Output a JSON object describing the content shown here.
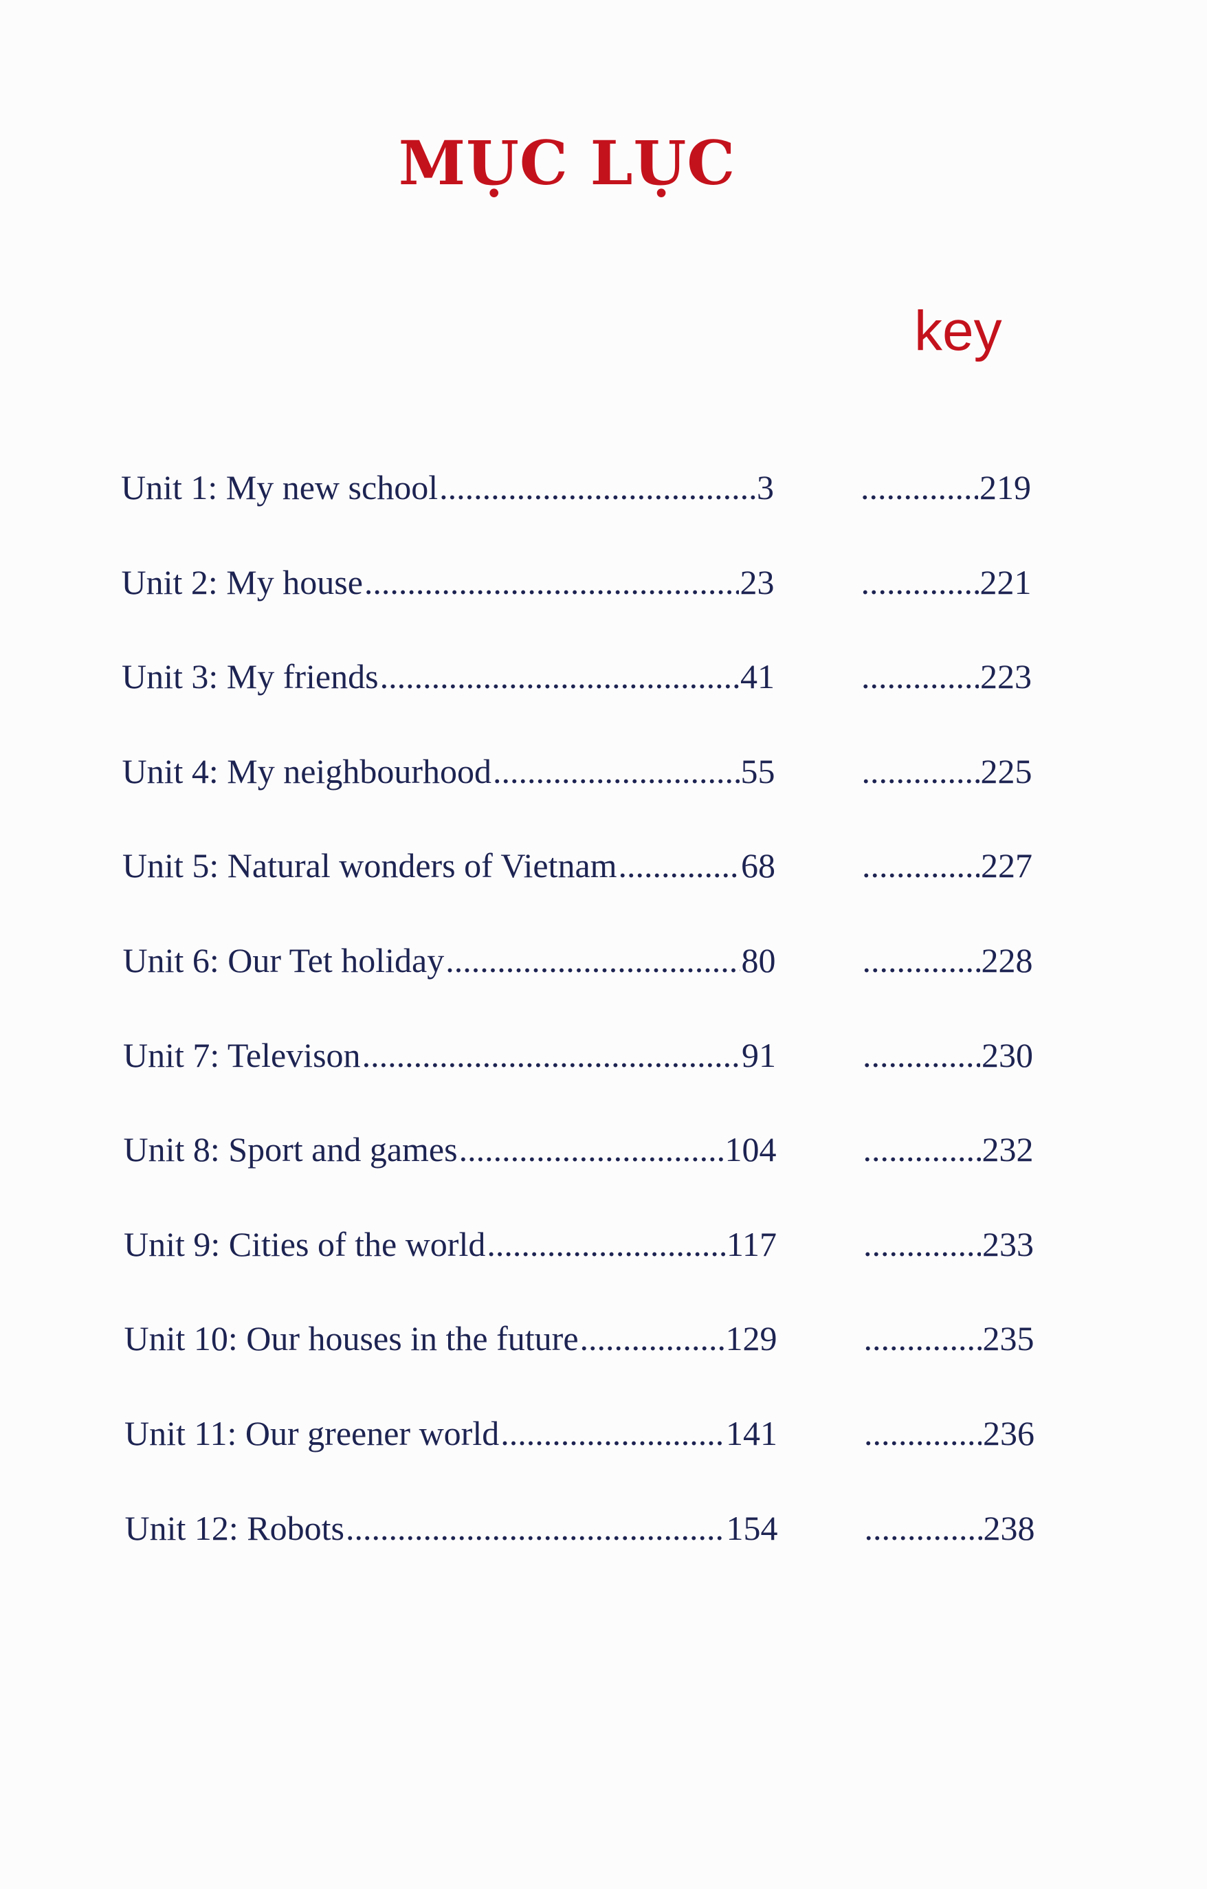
{
  "title": "MỤC LỤC",
  "key_label": "key",
  "colors": {
    "title": "#c4121c",
    "text": "#1d2452"
  },
  "entries": [
    {
      "label": "Unit 1: My new school",
      "page": "3",
      "key_page": "219"
    },
    {
      "label": "Unit 2: My house",
      "page": "23",
      "key_page": "221"
    },
    {
      "label": "Unit 3: My friends",
      "page": "41",
      "key_page": "223"
    },
    {
      "label": "Unit 4: My neighbourhood",
      "page": "55",
      "key_page": "225"
    },
    {
      "label": "Unit 5: Natural wonders of Vietnam",
      "page": "68",
      "key_page": "227"
    },
    {
      "label": "Unit 6: Our Tet holiday",
      "page": "80",
      "key_page": "228"
    },
    {
      "label": "Unit 7: Televison",
      "page": "91",
      "key_page": "230"
    },
    {
      "label": "Unit 8: Sport and games",
      "page": "104",
      "key_page": "232"
    },
    {
      "label": "Unit 9: Cities of the world",
      "page": "117",
      "key_page": "233"
    },
    {
      "label": "Unit 10: Our houses in the future",
      "page": "129",
      "key_page": "235"
    },
    {
      "label": "Unit 11: Our greener world",
      "page": "141",
      "key_page": "236"
    },
    {
      "label": "Unit 12: Robots",
      "page": "154",
      "key_page": "238"
    }
  ]
}
